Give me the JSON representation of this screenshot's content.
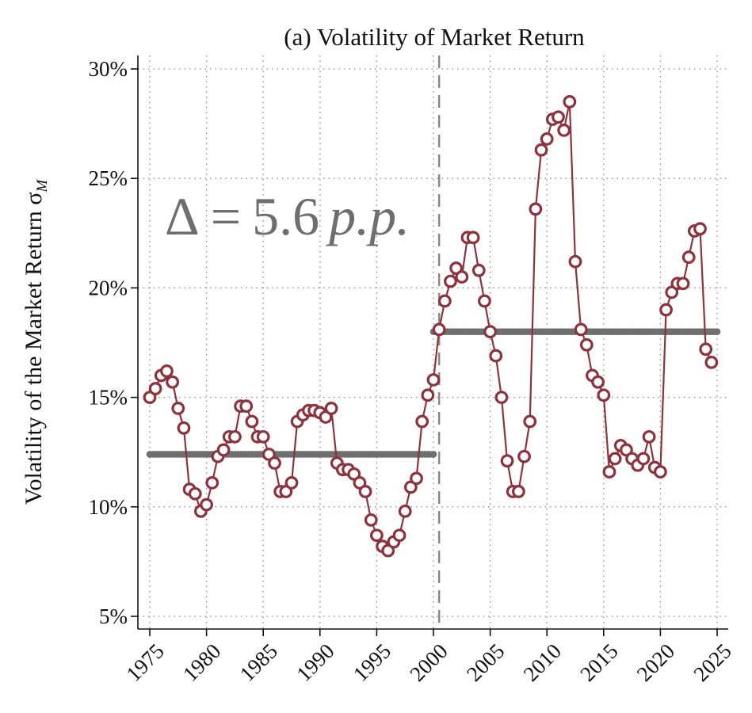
{
  "chart_data": {
    "type": "line",
    "title": "(a) Volatility of Market Return",
    "ylabel": "Volatility of the Market Return σ",
    "ylabel_subscript": "M",
    "xlabel": "",
    "xlim": [
      1974.5,
      2025.5
    ],
    "ylim": [
      4.5,
      30.5
    ],
    "x_ticks": [
      1975,
      1980,
      1985,
      1990,
      1995,
      2000,
      2005,
      2010,
      2015,
      2020,
      2025
    ],
    "x_tick_labels": [
      "1975",
      "1980",
      "1985",
      "1990",
      "1995",
      "2000",
      "2005",
      "2010",
      "2015",
      "2020",
      "2025"
    ],
    "y_ticks": [
      5,
      10,
      15,
      20,
      25,
      30
    ],
    "y_tick_labels": [
      "5%",
      "10%",
      "15%",
      "20%",
      "25%",
      "30%"
    ],
    "grid": true,
    "break_year": 2000.5,
    "annotation": {
      "delta": "Δ",
      "equals": "=",
      "value": "5.6",
      "unit": "p.p."
    },
    "series": [
      {
        "color": "#8c333d",
        "marker": "hollow-circle",
        "x": [
          1975.0,
          1975.5,
          1976.0,
          1976.5,
          1977.0,
          1977.5,
          1978.0,
          1978.5,
          1979.0,
          1979.5,
          1980.0,
          1980.5,
          1981.0,
          1981.5,
          1982.0,
          1982.5,
          1983.0,
          1983.5,
          1984.0,
          1984.5,
          1985.0,
          1985.5,
          1986.0,
          1986.5,
          1987.0,
          1987.5,
          1988.0,
          1988.5,
          1989.0,
          1989.5,
          1990.0,
          1990.5,
          1991.0,
          1991.5,
          1992.0,
          1992.5,
          1993.0,
          1993.5,
          1994.0,
          1994.5,
          1995.0,
          1995.5,
          1996.0,
          1996.5,
          1997.0,
          1997.5,
          1998.0,
          1998.5,
          1999.0,
          1999.5,
          2000.0,
          2000.5,
          2001.0,
          2001.5,
          2002.0,
          2002.5,
          2003.0,
          2003.5,
          2004.0,
          2004.5,
          2005.0,
          2005.5,
          2006.0,
          2006.5,
          2007.0,
          2007.5,
          2008.0,
          2008.5,
          2009.0,
          2009.5,
          2010.0,
          2010.5,
          2011.0,
          2011.5,
          2012.0,
          2012.5,
          2013.0,
          2013.5,
          2014.0,
          2014.5,
          2015.0,
          2015.5,
          2016.0,
          2016.5,
          2017.0,
          2017.5,
          2018.0,
          2018.5,
          2019.0,
          2019.5,
          2020.0,
          2020.5,
          2021.0,
          2021.5,
          2022.0,
          2022.5,
          2023.0,
          2023.5,
          2024.0,
          2024.5
        ],
        "values": [
          15.0,
          15.4,
          16.0,
          16.2,
          15.7,
          14.5,
          13.6,
          10.8,
          10.6,
          9.8,
          10.1,
          11.1,
          12.3,
          12.6,
          13.2,
          13.2,
          14.6,
          14.6,
          13.9,
          13.2,
          13.2,
          12.4,
          12.0,
          10.7,
          10.7,
          11.1,
          13.9,
          14.2,
          14.4,
          14.4,
          14.3,
          14.1,
          14.5,
          12.0,
          11.7,
          11.7,
          11.5,
          11.1,
          10.7,
          9.4,
          8.7,
          8.2,
          8.0,
          8.4,
          8.7,
          9.8,
          10.9,
          11.3,
          13.9,
          15.1,
          15.8,
          18.1,
          19.4,
          20.3,
          20.9,
          20.5,
          22.3,
          22.3,
          20.8,
          19.4,
          18.0,
          16.9,
          15.0,
          12.1,
          10.7,
          10.7,
          12.3,
          13.9,
          23.6,
          26.3,
          26.8,
          27.7,
          27.8,
          27.2,
          28.5,
          21.2,
          18.1,
          17.4,
          16.0,
          15.7,
          15.1,
          11.6,
          12.2,
          12.8,
          12.6,
          12.2,
          11.9,
          12.2,
          13.2,
          11.8,
          11.6,
          19.0,
          19.8,
          20.2,
          20.2,
          21.4,
          22.6,
          22.7,
          17.2,
          16.6
        ]
      },
      {
        "color": "#6e6e6e",
        "marker": "dense-dots",
        "x_range": [
          1975,
          2000
        ],
        "value": 12.4
      },
      {
        "color": "#6e6e6e",
        "marker": "dense-dots",
        "x_range": [
          2000,
          2025
        ],
        "value": 18.0
      }
    ]
  }
}
